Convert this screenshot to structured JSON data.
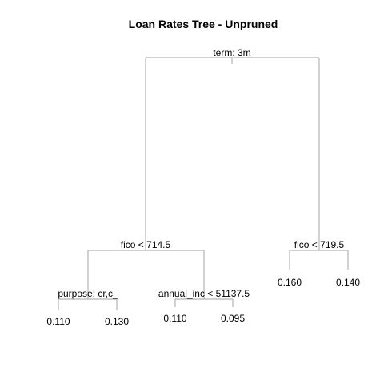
{
  "title": "Loan Rates Tree - Unpruned",
  "colors": {
    "background": "#ffffff",
    "branch": "#b3b3b3",
    "text": "#000000"
  },
  "tree": {
    "root": {
      "label": "term: 3m"
    },
    "left": {
      "label": "fico < 714.5",
      "left": {
        "label": "purpose: cr,c_",
        "left_leaf": "0.110",
        "right_leaf": "0.130"
      },
      "right": {
        "label": "annual_inc < 51137.5",
        "left_leaf": "0.110",
        "right_leaf": "0.095"
      }
    },
    "right": {
      "label": "fico < 719.5",
      "left_leaf": "0.160",
      "right_leaf": "0.140"
    }
  }
}
